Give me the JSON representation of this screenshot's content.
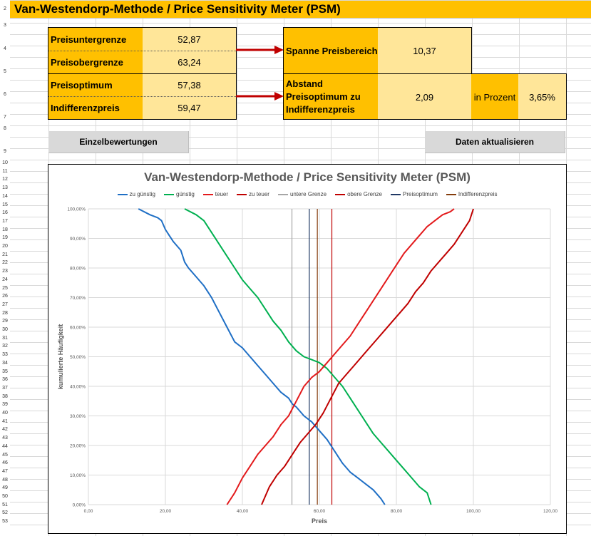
{
  "sheet": {
    "title": "Van-Westendorp-Methode / Price Sensitivity Meter (PSM)",
    "row_numbers": [
      "2",
      "3",
      "4",
      "5",
      "6",
      "7",
      "8",
      "9",
      "10",
      "11",
      "12",
      "13",
      "14",
      "15",
      "16",
      "17",
      "18",
      "19",
      "20",
      "21",
      "22",
      "23",
      "24",
      "25",
      "26",
      "27",
      "28",
      "29",
      "30",
      "31",
      "32",
      "33",
      "34",
      "35",
      "36",
      "37",
      "38",
      "39",
      "40",
      "41",
      "42",
      "43",
      "44",
      "45",
      "46",
      "47",
      "48",
      "49",
      "50",
      "51",
      "52",
      "53"
    ]
  },
  "results": {
    "preisuntergrenze": {
      "label": "Preisuntergrenze",
      "value": "52,87"
    },
    "preisobergrenze": {
      "label": "Preisobergrenze",
      "value": "63,24"
    },
    "preisoptimum": {
      "label": "Preisoptimum",
      "value": "57,38"
    },
    "indifferenzpreis": {
      "label": "Indifferenzpreis",
      "value": "59,47"
    },
    "spanne": {
      "label": "Spanne Preisbereich",
      "value": "10,37"
    },
    "abstand": {
      "label": "Abstand Preisoptimum zu Indifferenzpreis",
      "value": "2,09",
      "pct_label": "in Prozent",
      "pct_value": "3,65%"
    }
  },
  "buttons": {
    "einzel": "Einzelbewertungen",
    "update": "Daten aktualisieren"
  },
  "colors": {
    "zu_guenstig": "#1f6fc5",
    "guenstig": "#00b050",
    "teuer": "#e31a1c",
    "zu_teuer": "#c00000",
    "untere_grenze": "#a6a6a6",
    "obere_grenze": "#c00000",
    "preisoptimum": "#1f3864",
    "indifferenzpreis": "#843c0c"
  },
  "chart_data": {
    "type": "line",
    "title": "Van-Westendorp-Methode / Price Sensitivity Meter (PSM)",
    "xlabel": "Preis",
    "ylabel": "kumulierte Häufigkeit",
    "xlim": [
      0,
      120
    ],
    "ylim": [
      0,
      100
    ],
    "x_ticks": [
      "0,00",
      "20,00",
      "40,00",
      "60,00",
      "80,00",
      "100,00",
      "120,00"
    ],
    "y_ticks": [
      "0,00%",
      "10,00%",
      "20,00%",
      "30,00%",
      "40,00%",
      "50,00%",
      "60,00%",
      "70,00%",
      "80,00%",
      "90,00%",
      "100,00%"
    ],
    "grid": true,
    "legend_position": "top",
    "series": [
      {
        "name": "zu günstig",
        "x": [
          13,
          16,
          18,
          19,
          20,
          21,
          22,
          24,
          25,
          26,
          28,
          30,
          31,
          32,
          34,
          36,
          38,
          40,
          42,
          44,
          46,
          48,
          50,
          52,
          53,
          54,
          56,
          58,
          60,
          62,
          64,
          66,
          68,
          70,
          72,
          74,
          76,
          77
        ],
        "y": [
          100,
          98,
          97,
          96,
          93,
          91,
          89,
          86,
          82,
          80,
          77,
          74,
          72,
          70,
          65,
          60,
          55,
          53,
          50,
          47,
          44,
          41,
          38,
          36,
          34,
          33,
          30,
          28,
          25,
          22,
          18,
          14,
          11,
          9,
          7,
          5,
          2,
          0
        ]
      },
      {
        "name": "günstig",
        "x": [
          25,
          28,
          30,
          32,
          34,
          36,
          38,
          40,
          42,
          44,
          46,
          48,
          50,
          52,
          54,
          56,
          58,
          60,
          62,
          64,
          66,
          68,
          70,
          72,
          74,
          76,
          78,
          80,
          82,
          84,
          86,
          88,
          89
        ],
        "y": [
          100,
          98,
          96,
          92,
          88,
          84,
          80,
          76,
          73,
          70,
          66,
          62,
          59,
          55,
          52,
          50,
          49,
          48,
          46,
          43,
          40,
          36,
          32,
          28,
          24,
          21,
          18,
          15,
          12,
          9,
          6,
          4,
          0
        ]
      },
      {
        "name": "teuer",
        "x": [
          36,
          38,
          40,
          42,
          44,
          46,
          48,
          50,
          52,
          54,
          56,
          58,
          60,
          62,
          64,
          66,
          68,
          70,
          72,
          74,
          76,
          78,
          80,
          82,
          84,
          86,
          88,
          90,
          92,
          94,
          95
        ],
        "y": [
          0,
          4,
          9,
          13,
          17,
          20,
          23,
          27,
          30,
          35,
          40,
          43,
          45,
          48,
          51,
          54,
          57,
          61,
          65,
          69,
          73,
          77,
          81,
          85,
          88,
          91,
          94,
          96,
          98,
          99,
          100
        ]
      },
      {
        "name": "zu teuer",
        "x": [
          45,
          47,
          49,
          51,
          53,
          55,
          57,
          59,
          61,
          63,
          65,
          67,
          69,
          71,
          73,
          75,
          77,
          79,
          81,
          83,
          85,
          87,
          89,
          91,
          93,
          95,
          97,
          99,
          100
        ],
        "y": [
          0,
          6,
          10,
          13,
          17,
          21,
          24,
          27,
          31,
          36,
          41,
          44,
          47,
          50,
          53,
          56,
          59,
          62,
          65,
          68,
          72,
          75,
          79,
          82,
          85,
          88,
          92,
          96,
          100
        ]
      }
    ],
    "reference_lines": [
      {
        "name": "untere Grenze",
        "x": 52.87
      },
      {
        "name": "obere Grenze",
        "x": 63.24
      },
      {
        "name": "Preisoptimum",
        "x": 57.38
      },
      {
        "name": "Indifferenzpreis",
        "x": 59.47
      }
    ]
  }
}
